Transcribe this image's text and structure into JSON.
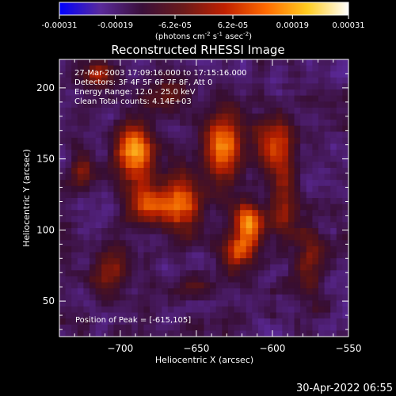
{
  "chart_data": {
    "type": "heatmap",
    "title": "Reconstructed RHESSI Image",
    "xlabel": "Heliocentric X (arcsec)",
    "ylabel": "Heliocentric Y (arcsec)",
    "xlim": [
      -740,
      -550
    ],
    "ylim": [
      25,
      220
    ],
    "xticks": [
      -700,
      -650,
      -600,
      -550
    ],
    "xtick_labels": [
      "−700",
      "−650",
      "−600",
      "−550"
    ],
    "yticks": [
      50,
      100,
      150,
      200
    ],
    "ytick_labels": [
      "50",
      "100",
      "150",
      "200"
    ],
    "colorbar": {
      "range": [
        -0.00031,
        0.00031
      ],
      "ticks": [
        -0.00031,
        -0.00019,
        -6.2e-05,
        6.2e-05,
        0.00019,
        0.00031
      ],
      "tick_labels": [
        "-0.00031",
        "-0.00019",
        "-6.2e-05",
        "6.2e-05",
        "0.00019",
        "0.00031"
      ],
      "units_html": "(photons cm<tspan dy=\"-4\" font-size=\"7\">-2</tspan><tspan dy=\"4\"> s</tspan><tspan dy=\"-4\" font-size=\"7\">-1</tspan><tspan dy=\"4\"> asec</tspan><tspan dy=\"-4\" font-size=\"7\">-2</tspan><tspan dy=\"4\">)</tspan>",
      "colors": [
        "#0000ff",
        "#5a2a9a",
        "#3a0f3a",
        "#6b1a1a",
        "#c02000",
        "#ff6a00",
        "#ffcc20",
        "#ffffff"
      ]
    },
    "annotations": [
      "27-Mar-2003 17:09:16.000 to 17:15:16.000",
      "Detectors: 3F 4F 5F 6F 7F 8F, Att 0",
      "Energy Range: 12.0 - 25.0 keV",
      "Clean     Total counts: 4.14E+03"
    ],
    "peak_label": "Position of Peak = [-615,105]",
    "peak": [
      -615,
      105
    ],
    "bright_features": [
      {
        "x": -690,
        "y": 155,
        "amp": 1.0,
        "sx": 9,
        "sy": 14
      },
      {
        "x": -680,
        "y": 118,
        "amp": 0.8,
        "sx": 10,
        "sy": 10
      },
      {
        "x": -660,
        "y": 120,
        "amp": 0.8,
        "sx": 8,
        "sy": 18
      },
      {
        "x": -632,
        "y": 160,
        "amp": 0.9,
        "sx": 9,
        "sy": 18
      },
      {
        "x": -615,
        "y": 105,
        "amp": 1.0,
        "sx": 7,
        "sy": 10
      },
      {
        "x": -622,
        "y": 85,
        "amp": 0.7,
        "sx": 8,
        "sy": 9
      },
      {
        "x": -598,
        "y": 160,
        "amp": 0.7,
        "sx": 9,
        "sy": 12
      },
      {
        "x": -592,
        "y": 118,
        "amp": 0.6,
        "sx": 7,
        "sy": 18
      },
      {
        "x": -705,
        "y": 75,
        "amp": 0.5,
        "sx": 9,
        "sy": 10
      },
      {
        "x": -650,
        "y": 60,
        "amp": 0.35,
        "sx": 10,
        "sy": 6
      },
      {
        "x": -575,
        "y": 75,
        "amp": 0.5,
        "sx": 6,
        "sy": 18
      },
      {
        "x": -713,
        "y": 210,
        "amp": 0.6,
        "sx": 8,
        "sy": 7
      },
      {
        "x": -668,
        "y": 195,
        "amp": 0.4,
        "sx": 10,
        "sy": 8
      },
      {
        "x": -725,
        "y": 140,
        "amp": 0.4,
        "sx": 6,
        "sy": 10
      }
    ]
  },
  "timestamp": "30-Apr-2022 06:55"
}
